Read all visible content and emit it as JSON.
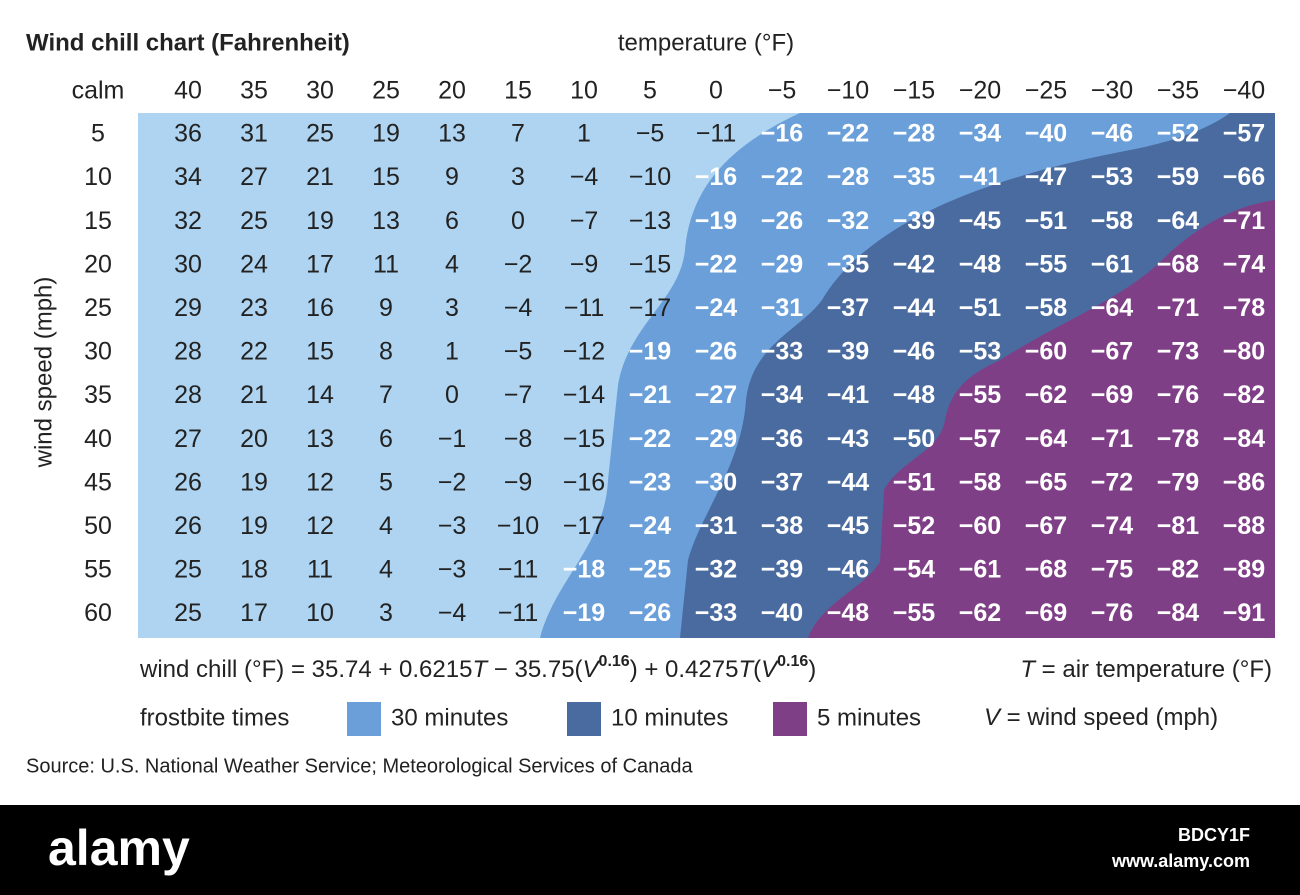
{
  "title": "Wind chill chart (Fahrenheit)",
  "top_label": "temperature (°F)",
  "side_label": "wind speed (mph)",
  "table": {
    "columns": [
      "calm",
      "40",
      "35",
      "30",
      "25",
      "20",
      "15",
      "10",
      "5",
      "0",
      "−5",
      "−10",
      "−15",
      "−20",
      "−25",
      "−30",
      "−35",
      "−40"
    ],
    "rows": [
      [
        "5",
        "36",
        "31",
        "25",
        "19",
        "13",
        "7",
        "1",
        "−5",
        "−11",
        "−16",
        "−22",
        "−28",
        "−34",
        "−40",
        "−46",
        "−52",
        "−57"
      ],
      [
        "10",
        "34",
        "27",
        "21",
        "15",
        "9",
        "3",
        "−4",
        "−10",
        "−16",
        "−22",
        "−28",
        "−35",
        "−41",
        "−47",
        "−53",
        "−59",
        "−66"
      ],
      [
        "15",
        "32",
        "25",
        "19",
        "13",
        "6",
        "0",
        "−7",
        "−13",
        "−19",
        "−26",
        "−32",
        "−39",
        "−45",
        "−51",
        "−58",
        "−64",
        "−71"
      ],
      [
        "20",
        "30",
        "24",
        "17",
        "11",
        "4",
        "−2",
        "−9",
        "−15",
        "−22",
        "−29",
        "−35",
        "−42",
        "−48",
        "−55",
        "−61",
        "−68",
        "−74"
      ],
      [
        "25",
        "29",
        "23",
        "16",
        "9",
        "3",
        "−4",
        "−11",
        "−17",
        "−24",
        "−31",
        "−37",
        "−44",
        "−51",
        "−58",
        "−64",
        "−71",
        "−78"
      ],
      [
        "30",
        "28",
        "22",
        "15",
        "8",
        "1",
        "−5",
        "−12",
        "−19",
        "−26",
        "−33",
        "−39",
        "−46",
        "−53",
        "−60",
        "−67",
        "−73",
        "−80"
      ],
      [
        "35",
        "28",
        "21",
        "14",
        "7",
        "0",
        "−7",
        "−14",
        "−21",
        "−27",
        "−34",
        "−41",
        "−48",
        "−55",
        "−62",
        "−69",
        "−76",
        "−82"
      ],
      [
        "40",
        "27",
        "20",
        "13",
        "6",
        "−1",
        "−8",
        "−15",
        "−22",
        "−29",
        "−36",
        "−43",
        "−50",
        "−57",
        "−64",
        "−71",
        "−78",
        "−84"
      ],
      [
        "45",
        "26",
        "19",
        "12",
        "5",
        "−2",
        "−9",
        "−16",
        "−23",
        "−30",
        "−37",
        "−44",
        "−51",
        "−58",
        "−65",
        "−72",
        "−79",
        "−86"
      ],
      [
        "50",
        "26",
        "19",
        "12",
        "4",
        "−3",
        "−10",
        "−17",
        "−24",
        "−31",
        "−38",
        "−45",
        "−52",
        "−60",
        "−67",
        "−74",
        "−81",
        "−88"
      ],
      [
        "55",
        "25",
        "18",
        "11",
        "4",
        "−3",
        "−11",
        "−18",
        "−25",
        "−32",
        "−39",
        "−46",
        "−54",
        "−61",
        "−68",
        "−75",
        "−82",
        "−89"
      ],
      [
        "60",
        "25",
        "17",
        "10",
        "3",
        "−4",
        "−11",
        "−19",
        "−26",
        "−33",
        "−40",
        "−48",
        "−55",
        "−62",
        "−69",
        "−76",
        "−84",
        "−91"
      ]
    ]
  },
  "formula": [
    "wind chill (°F) = 35.74 + 0.6215",
    "T",
    " − 35.75(",
    "V",
    "0.16",
    ") + 0.4275",
    "T",
    "(",
    "V",
    "0.16",
    ")"
  ],
  "legend": {
    "title": "frostbite times",
    "items": [
      {
        "name": "30 minutes",
        "color": "#6a9fd9"
      },
      {
        "name": "10 minutes",
        "color": "#4a6b9f"
      },
      {
        "name": "5 minutes",
        "color": "#7f3f86"
      }
    ]
  },
  "definitions": [
    [
      "T",
      " = air temperature (°F)"
    ],
    [
      "V",
      " = wind speed (mph)"
    ]
  ],
  "source": "Source: U.S. National Weather Service; Meteorological Services of Canada",
  "footer": {
    "brand": "alamy",
    "image_id": "BDCY1F",
    "url": "www.alamy.com"
  }
}
